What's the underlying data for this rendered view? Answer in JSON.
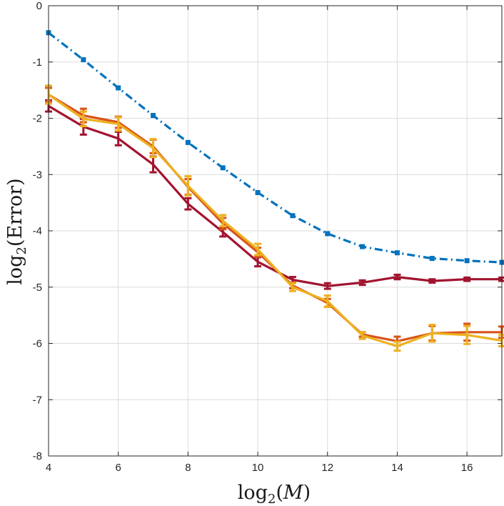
{
  "chart_data": {
    "type": "line",
    "title": "",
    "xlabel": {
      "func": "log",
      "sub": "2",
      "open": "(",
      "var": "M",
      "close": ")"
    },
    "ylabel": {
      "func": "log",
      "sub": "2",
      "open": "(",
      "var": "Error",
      "close": ")"
    },
    "xlim": [
      4,
      17
    ],
    "ylim": [
      -8,
      0
    ],
    "xticks": [
      4,
      6,
      8,
      10,
      12,
      14,
      16
    ],
    "yticks": [
      0,
      -1,
      -2,
      -3,
      -4,
      -5,
      -6,
      -7,
      -8
    ],
    "xtick_labels": [
      "4",
      "6",
      "8",
      "10",
      "12",
      "14",
      "16"
    ],
    "ytick_labels": [
      "0",
      "-1",
      "-2",
      "-3",
      "-4",
      "-5",
      "-6",
      "-7",
      "-8"
    ],
    "grid": true,
    "x": [
      4,
      5,
      6,
      7,
      8,
      9,
      10,
      11,
      12,
      13,
      14,
      15,
      16,
      17
    ],
    "series": [
      {
        "name": "series-blue-dashdot",
        "color": "#0072BD",
        "style": "dashdot",
        "values": [
          -0.48,
          -0.96,
          -1.46,
          -1.95,
          -2.43,
          -2.88,
          -3.32,
          -3.73,
          -4.05,
          -4.28,
          -4.39,
          -4.49,
          -4.53,
          -4.56
        ]
      },
      {
        "name": "series-darkred",
        "color": "#A2142F",
        "style": "solid",
        "values": [
          -1.78,
          -2.15,
          -2.36,
          -2.82,
          -3.52,
          -4.02,
          -4.55,
          -4.87,
          -4.98,
          -4.92,
          -4.82,
          -4.89,
          -4.86,
          -4.86
        ],
        "errors": [
          0.1,
          0.14,
          0.12,
          0.14,
          0.1,
          0.08,
          0.08,
          0.05,
          0.05,
          0.04,
          0.04,
          0.03,
          0.03,
          0.03
        ]
      },
      {
        "name": "series-orange",
        "color": "#D95319",
        "style": "solid",
        "values": [
          -1.58,
          -1.95,
          -2.07,
          -2.5,
          -3.22,
          -3.87,
          -4.38,
          -4.97,
          -5.28,
          -5.84,
          -5.96,
          -5.82,
          -5.8,
          -5.8
        ],
        "errors": [
          0.12,
          0.12,
          0.1,
          0.12,
          0.14,
          0.1,
          0.08,
          0.05,
          0.07,
          0.04,
          0.08,
          0.13,
          0.15,
          0.1
        ]
      },
      {
        "name": "series-yellow",
        "color": "#EDB120",
        "style": "solid",
        "values": [
          -1.58,
          -2.01,
          -2.1,
          -2.53,
          -3.2,
          -3.82,
          -4.33,
          -5.0,
          -5.25,
          -5.86,
          -6.05,
          -5.82,
          -5.85,
          -5.95
        ],
        "errors": [
          0.16,
          0.13,
          0.12,
          0.16,
          0.17,
          0.1,
          0.1,
          0.07,
          0.1,
          0.06,
          0.08,
          0.15,
          0.16,
          0.1
        ]
      }
    ]
  }
}
